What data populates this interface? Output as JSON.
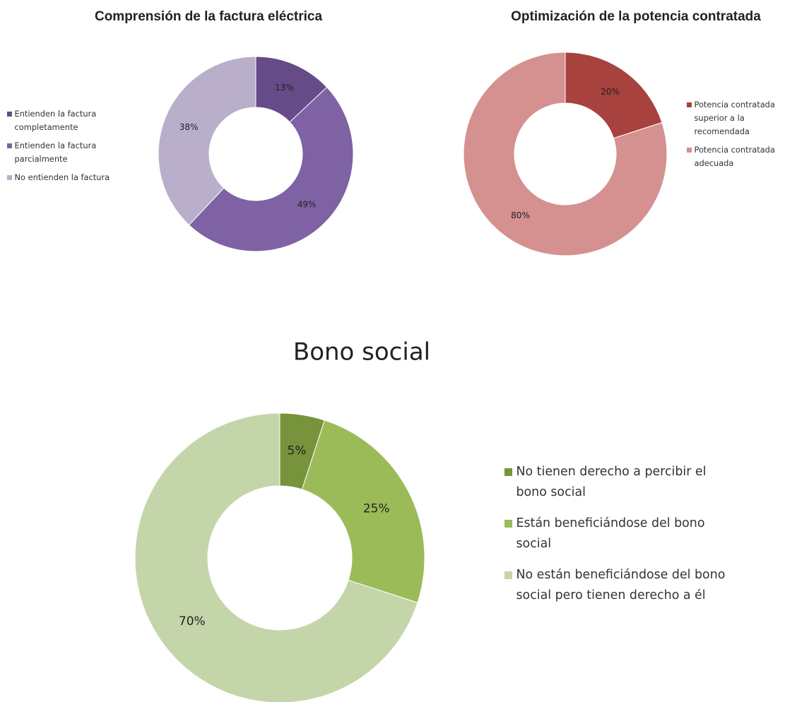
{
  "chart_data": [
    {
      "type": "pie",
      "title": "Comprensión de la factura eléctrica",
      "categories": [
        "Entienden la factura completamente",
        "Entienden la factura parcialmente",
        "No entienden la factura"
      ],
      "values": [
        13,
        49,
        38
      ],
      "value_labels": [
        "13%",
        "49%",
        "38%"
      ],
      "colors": [
        "#654b87",
        "#7f62a3",
        "#b9afcb"
      ],
      "legend": "left"
    },
    {
      "type": "pie",
      "title": "Optimización de la potencia contratada",
      "categories": [
        "Potencia contratada superior a la recomendada",
        "Potencia contratada adecuada"
      ],
      "values": [
        20,
        80
      ],
      "value_labels": [
        "20%",
        "80%"
      ],
      "colors": [
        "#a8423f",
        "#d49190"
      ],
      "legend": "right"
    },
    {
      "type": "pie",
      "title": "Bono social",
      "categories": [
        "No tienen derecho a percibir el bono social",
        "Están beneficiándose del bono social",
        "No están beneficiándose del bono social pero tienen derecho a él"
      ],
      "values": [
        5,
        25,
        70
      ],
      "value_labels": [
        "5%",
        "25%",
        "70%"
      ],
      "colors": [
        "#77933c",
        "#9bbb59",
        "#c4d6a9"
      ],
      "legend": "right"
    }
  ]
}
